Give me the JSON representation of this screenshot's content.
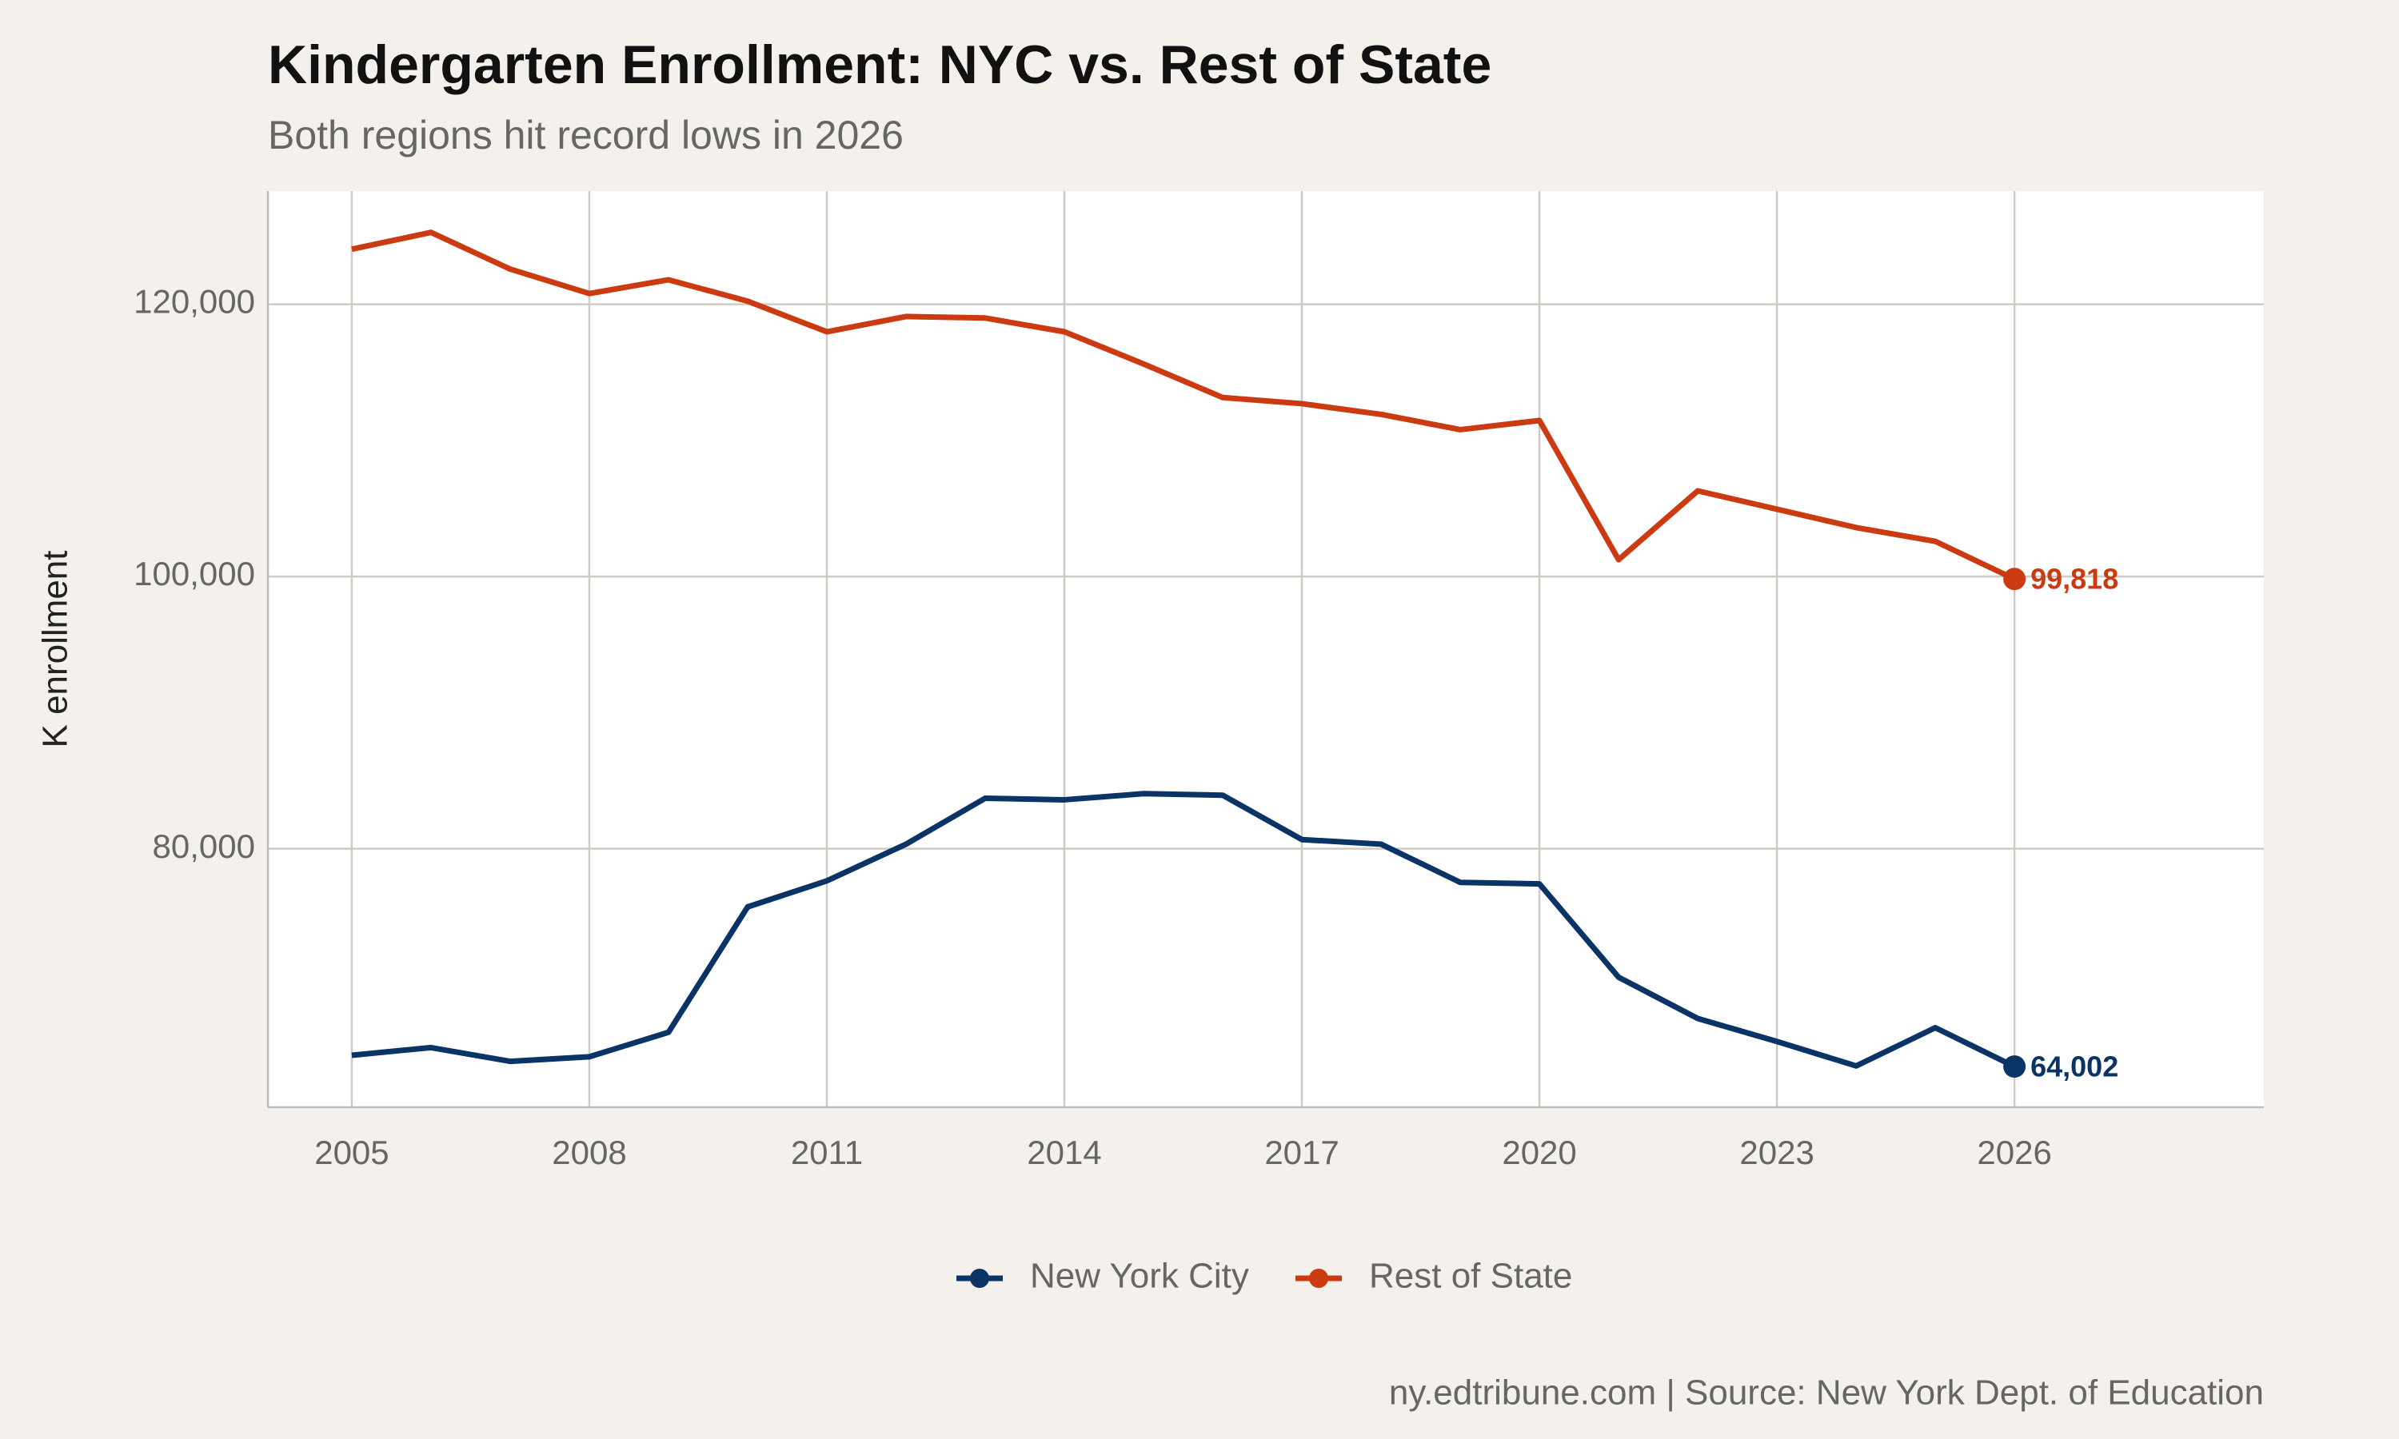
{
  "chart_data": {
    "type": "line",
    "title": "Kindergarten Enrollment: NYC vs. Rest of State",
    "subtitle": "Both regions hit record lows in 2026",
    "y_label": "K enrollment",
    "caption": "ny.edtribune.com | Source: New York Dept. of Education",
    "x": [
      2005,
      2006,
      2007,
      2008,
      2009,
      2010,
      2011,
      2012,
      2013,
      2014,
      2015,
      2016,
      2017,
      2018,
      2019,
      2020,
      2021,
      2022,
      2023,
      2024,
      2025,
      2026
    ],
    "series": [
      {
        "name": "New York City",
        "color": "#0b3466",
        "values": [
          64831,
          65393,
          64382,
          64719,
          66517,
          75730,
          77640,
          80337,
          83708,
          83596,
          84045,
          83933,
          80674,
          80337,
          77528,
          77416,
          70562,
          67528,
          65843,
          64045,
          66854,
          64002
        ],
        "value_labels": [
          null,
          null,
          null,
          null,
          null,
          null,
          null,
          null,
          null,
          null,
          null,
          null,
          null,
          null,
          null,
          null,
          null,
          null,
          null,
          null,
          null,
          "64,002"
        ]
      },
      {
        "name": "Rest of State",
        "color": "#cc3a12",
        "values": [
          124045,
          125281,
          122584,
          120787,
          121798,
          120225,
          117978,
          119101,
          118989,
          117978,
          115618,
          113146,
          112697,
          111910,
          110787,
          111461,
          101236,
          106292,
          104944,
          103596,
          102584,
          99818
        ],
        "value_labels": [
          null,
          null,
          null,
          null,
          null,
          null,
          null,
          null,
          null,
          null,
          null,
          null,
          null,
          null,
          null,
          null,
          null,
          null,
          null,
          null,
          null,
          "99,818"
        ]
      }
    ],
    "xlim": [
      2003.94,
      2029.15
    ],
    "ylim": [
      61011,
      128315
    ],
    "xticks": [
      2005,
      2008,
      2011,
      2014,
      2017,
      2020,
      2023,
      2026
    ],
    "yticks": [
      {
        "value": 80000,
        "label": "80,000"
      },
      {
        "value": 100000,
        "label": "100,000"
      },
      {
        "value": 120000,
        "label": "120,000"
      }
    ],
    "grid": true,
    "legend": "bottom"
  }
}
